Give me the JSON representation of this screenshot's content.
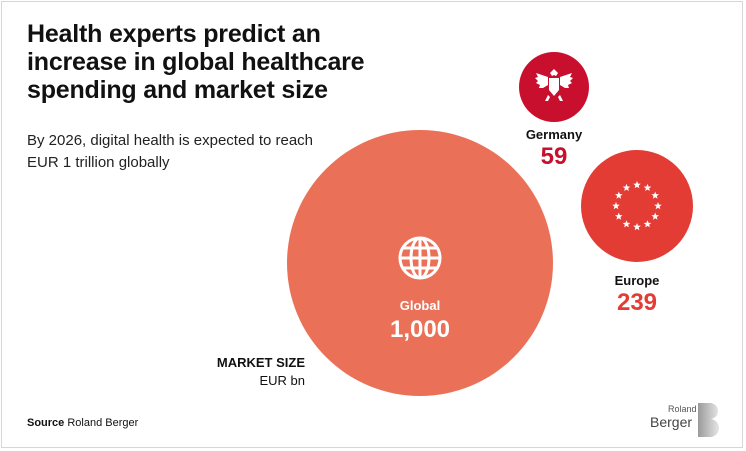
{
  "header": {
    "title": "Health experts predict an increase in global healthcare spending and market size",
    "subtitle": "By 2026, digital health is expected to reach EUR 1 trillion globally"
  },
  "legend": {
    "market_size_label": "MARKET SIZE",
    "unit_label": "EUR bn"
  },
  "footer": {
    "source_label": "Source",
    "source_value": "Roland Berger"
  },
  "logo": {
    "text_top": "Roland",
    "text_main": "Berger"
  },
  "colors": {
    "global": "#ea7158",
    "europe": "#e23c35",
    "germany": "#c8102e",
    "value_red": "#c8102e"
  },
  "chart_data": {
    "type": "bubble",
    "title": "Health experts predict an increase in global healthcare spending and market size",
    "subtitle": "By 2026, digital health is expected to reach EUR 1 trillion globally",
    "unit": "EUR bn",
    "series": [
      {
        "name": "Global",
        "value": 1000,
        "value_label": "1,000",
        "icon": "globe-icon"
      },
      {
        "name": "Europe",
        "value": 239,
        "value_label": "239",
        "icon": "eu-stars-icon"
      },
      {
        "name": "Germany",
        "value": 59,
        "value_label": "59",
        "icon": "eagle-icon"
      }
    ]
  }
}
